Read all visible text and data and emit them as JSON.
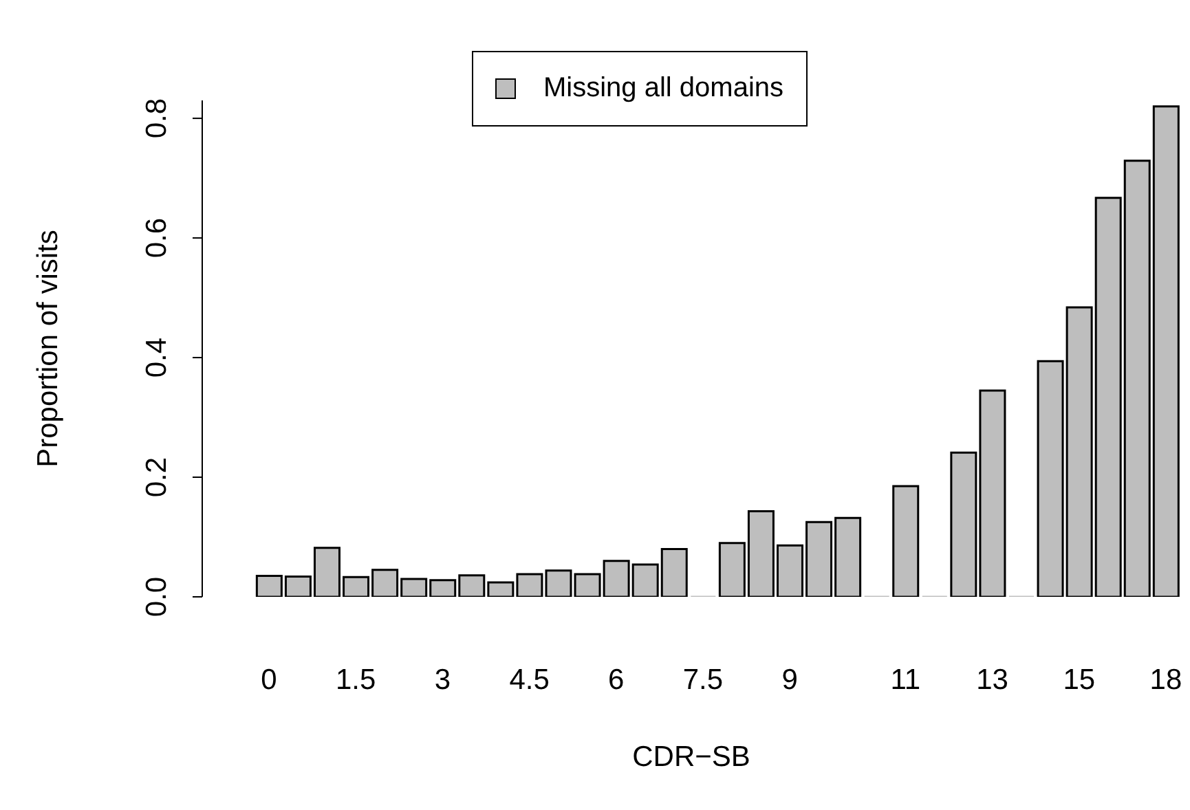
{
  "chart_data": {
    "type": "bar",
    "xlabel": "CDR−SB",
    "ylabel": "Proportion of visits",
    "categories": [
      "0",
      null,
      null,
      "1.5",
      null,
      null,
      "3",
      null,
      null,
      "4.5",
      null,
      null,
      "6",
      null,
      null,
      "7.5",
      null,
      null,
      "9",
      null,
      null,
      null,
      "11",
      null,
      null,
      "13",
      null,
      null,
      "15",
      null,
      null,
      "18"
    ],
    "series": [
      {
        "name": "Missing all domains",
        "color": "#bebebe",
        "values": [
          0.035,
          0.034,
          0.082,
          0.033,
          0.045,
          0.03,
          0.028,
          0.036,
          0.024,
          0.038,
          0.044,
          0.038,
          0.06,
          0.054,
          0.08,
          0,
          0.09,
          0.143,
          0.086,
          0.125,
          0.132,
          0,
          0.185,
          0,
          0.241,
          0.345,
          0,
          0.394,
          0.484,
          0.667,
          0.729,
          0.82
        ]
      }
    ],
    "ylim": [
      0,
      0.83
    ],
    "yticks": [
      {
        "value": 0,
        "label": "0.0"
      },
      0.2,
      0.4,
      0.6,
      0.8
    ],
    "grid": false,
    "legend": "top"
  }
}
